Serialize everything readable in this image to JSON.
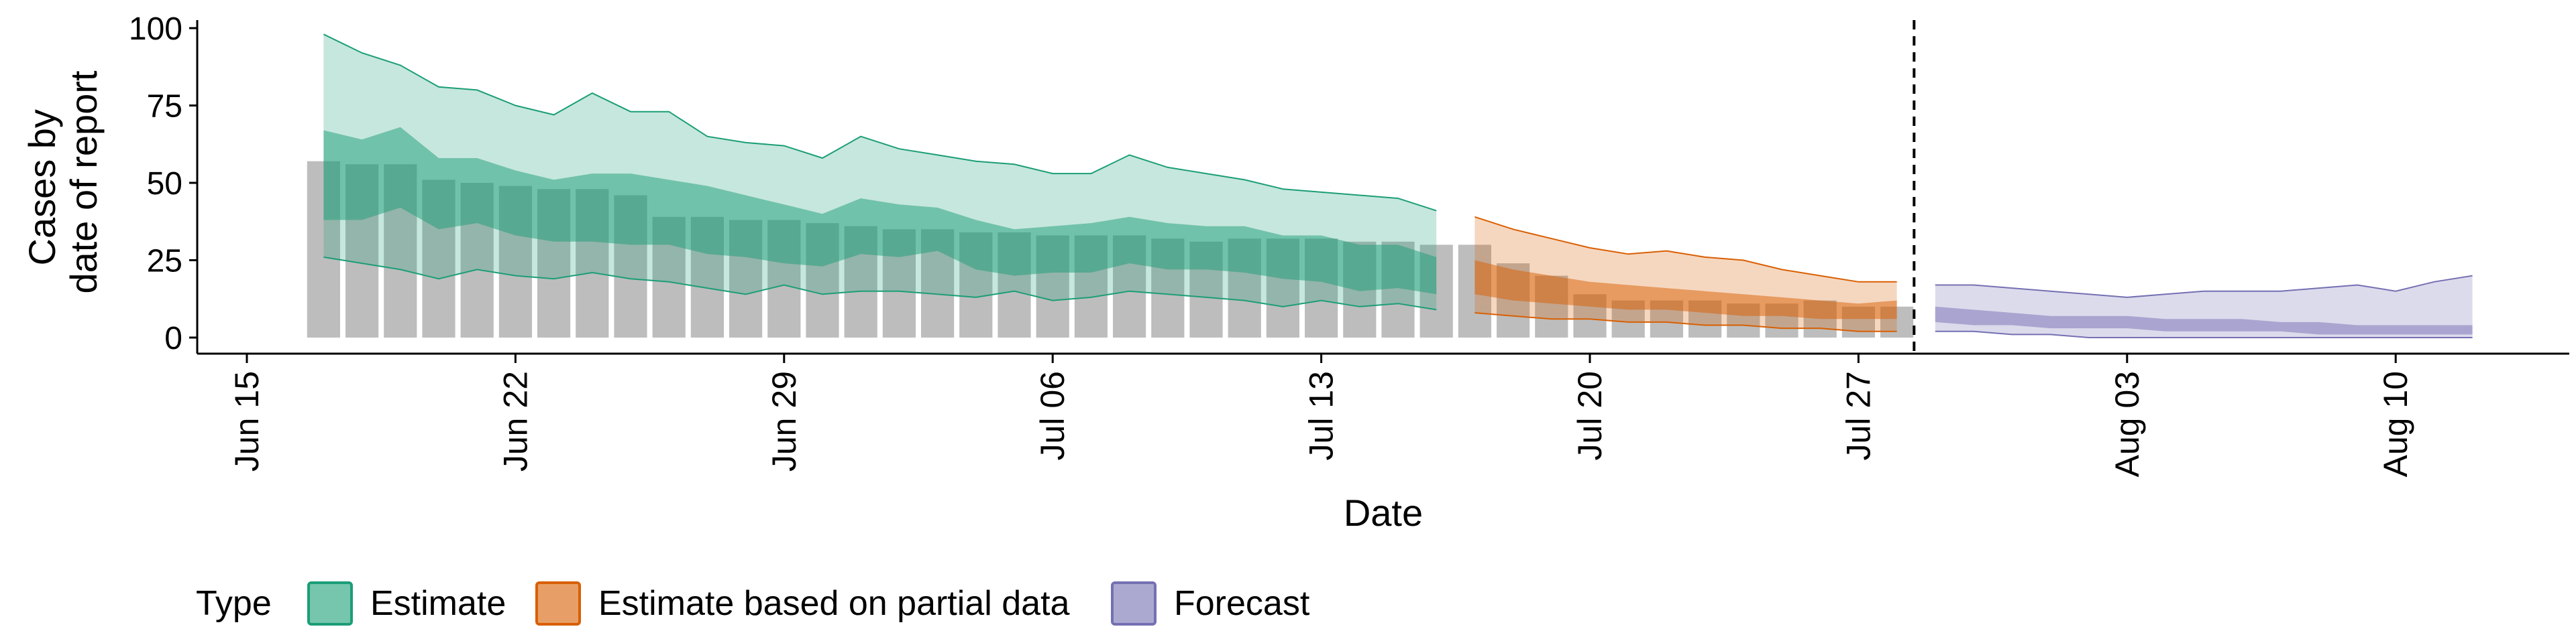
{
  "chart_data": {
    "type": "area",
    "xlabel": "Date",
    "ylabel": [
      "Cases by",
      "date of report"
    ],
    "ylim": [
      0,
      100
    ],
    "yticks": [
      0,
      25,
      50,
      75,
      100
    ],
    "xticks": [
      {
        "date": "2020-06-15",
        "label": "Jun 15"
      },
      {
        "date": "2020-06-22",
        "label": "Jun 22"
      },
      {
        "date": "2020-06-29",
        "label": "Jun 29"
      },
      {
        "date": "2020-07-06",
        "label": "Jul 06"
      },
      {
        "date": "2020-07-13",
        "label": "Jul 13"
      },
      {
        "date": "2020-07-20",
        "label": "Jul 20"
      },
      {
        "date": "2020-07-27",
        "label": "Jul 27"
      },
      {
        "date": "2020-08-03",
        "label": "Aug 03"
      },
      {
        "date": "2020-08-10",
        "label": "Aug 10"
      }
    ],
    "xlim": [
      "2020-06-15",
      "2020-08-14"
    ],
    "cutoff_date": "2020-07-28",
    "legend": {
      "title": "Type",
      "position": "bottom"
    },
    "reported_cases": {
      "dates": [
        "2020-06-17",
        "2020-06-18",
        "2020-06-19",
        "2020-06-20",
        "2020-06-21",
        "2020-06-22",
        "2020-06-23",
        "2020-06-24",
        "2020-06-25",
        "2020-06-26",
        "2020-06-27",
        "2020-06-28",
        "2020-06-29",
        "2020-06-30",
        "2020-07-01",
        "2020-07-02",
        "2020-07-03",
        "2020-07-04",
        "2020-07-05",
        "2020-07-06",
        "2020-07-07",
        "2020-07-08",
        "2020-07-09",
        "2020-07-10",
        "2020-07-11",
        "2020-07-12",
        "2020-07-13",
        "2020-07-14",
        "2020-07-15",
        "2020-07-16",
        "2020-07-17",
        "2020-07-18",
        "2020-07-19",
        "2020-07-20",
        "2020-07-21",
        "2020-07-22",
        "2020-07-23",
        "2020-07-24",
        "2020-07-25",
        "2020-07-26",
        "2020-07-27",
        "2020-07-28"
      ],
      "values": [
        57,
        56,
        56,
        51,
        50,
        49,
        48,
        48,
        46,
        39,
        39,
        38,
        38,
        37,
        36,
        35,
        35,
        34,
        34,
        33,
        33,
        33,
        32,
        31,
        32,
        32,
        32,
        31,
        31,
        30,
        30,
        24,
        20,
        14,
        12,
        12,
        12,
        11,
        11,
        12,
        10,
        10
      ]
    },
    "series": [
      {
        "name": "Estimate",
        "color": "#1b9e77",
        "dates": [
          "2020-06-17",
          "2020-06-18",
          "2020-06-19",
          "2020-06-20",
          "2020-06-21",
          "2020-06-22",
          "2020-06-23",
          "2020-06-24",
          "2020-06-25",
          "2020-06-26",
          "2020-06-27",
          "2020-06-28",
          "2020-06-29",
          "2020-06-30",
          "2020-07-01",
          "2020-07-02",
          "2020-07-03",
          "2020-07-04",
          "2020-07-05",
          "2020-07-06",
          "2020-07-07",
          "2020-07-08",
          "2020-07-09",
          "2020-07-10",
          "2020-07-11",
          "2020-07-12",
          "2020-07-13",
          "2020-07-14",
          "2020-07-15",
          "2020-07-16"
        ],
        "upper90": [
          98,
          92,
          88,
          81,
          80,
          75,
          72,
          79,
          73,
          73,
          65,
          63,
          62,
          58,
          65,
          61,
          59,
          57,
          56,
          53,
          53,
          59,
          55,
          53,
          51,
          48,
          47,
          46,
          45,
          41
        ],
        "lower90": [
          26,
          24,
          22,
          19,
          22,
          20,
          19,
          21,
          19,
          18,
          16,
          14,
          17,
          14,
          15,
          15,
          14,
          13,
          15,
          12,
          13,
          15,
          14,
          13,
          12,
          10,
          12,
          10,
          11,
          9
        ],
        "upper50": [
          67,
          64,
          68,
          58,
          58,
          54,
          51,
          53,
          53,
          51,
          49,
          46,
          43,
          40,
          45,
          43,
          42,
          38,
          35,
          36,
          37,
          39,
          37,
          36,
          36,
          33,
          33,
          30,
          30,
          26
        ],
        "lower50": [
          38,
          38,
          42,
          35,
          37,
          33,
          31,
          31,
          30,
          30,
          27,
          26,
          24,
          23,
          27,
          26,
          28,
          22,
          20,
          21,
          21,
          24,
          22,
          22,
          21,
          19,
          18,
          15,
          16,
          14
        ]
      },
      {
        "name": "Estimate based on partial data",
        "color": "#d95f02",
        "dates": [
          "2020-07-17",
          "2020-07-18",
          "2020-07-19",
          "2020-07-20",
          "2020-07-21",
          "2020-07-22",
          "2020-07-23",
          "2020-07-24",
          "2020-07-25",
          "2020-07-26",
          "2020-07-27",
          "2020-07-28"
        ],
        "upper90": [
          39,
          35,
          32,
          29,
          27,
          28,
          26,
          25,
          22,
          20,
          18,
          18
        ],
        "lower90": [
          8,
          7,
          6,
          6,
          5,
          5,
          4,
          4,
          3,
          3,
          2,
          2
        ],
        "upper50": [
          25,
          22,
          20,
          18,
          17,
          16,
          15,
          14,
          13,
          12,
          11,
          12
        ],
        "lower50": [
          14,
          12,
          11,
          10,
          9,
          9,
          8,
          7,
          7,
          6,
          6,
          6
        ]
      },
      {
        "name": "Forecast",
        "color": "#7570b3",
        "dates": [
          "2020-07-29",
          "2020-07-30",
          "2020-07-31",
          "2020-08-01",
          "2020-08-02",
          "2020-08-03",
          "2020-08-04",
          "2020-08-05",
          "2020-08-06",
          "2020-08-07",
          "2020-08-08",
          "2020-08-09",
          "2020-08-10",
          "2020-08-11",
          "2020-08-12"
        ],
        "upper90": [
          17,
          17,
          16,
          15,
          14,
          13,
          14,
          15,
          15,
          15,
          16,
          17,
          15,
          18,
          20
        ],
        "lower90": [
          2,
          2,
          1,
          1,
          0,
          0,
          0,
          0,
          0,
          0,
          0,
          0,
          0,
          0,
          0
        ],
        "upper50": [
          10,
          9,
          8,
          7,
          7,
          7,
          6,
          6,
          6,
          5,
          5,
          4,
          4,
          4,
          4
        ],
        "lower50": [
          5,
          4,
          4,
          3,
          3,
          3,
          2,
          2,
          2,
          2,
          1,
          1,
          1,
          1,
          1
        ]
      }
    ]
  }
}
